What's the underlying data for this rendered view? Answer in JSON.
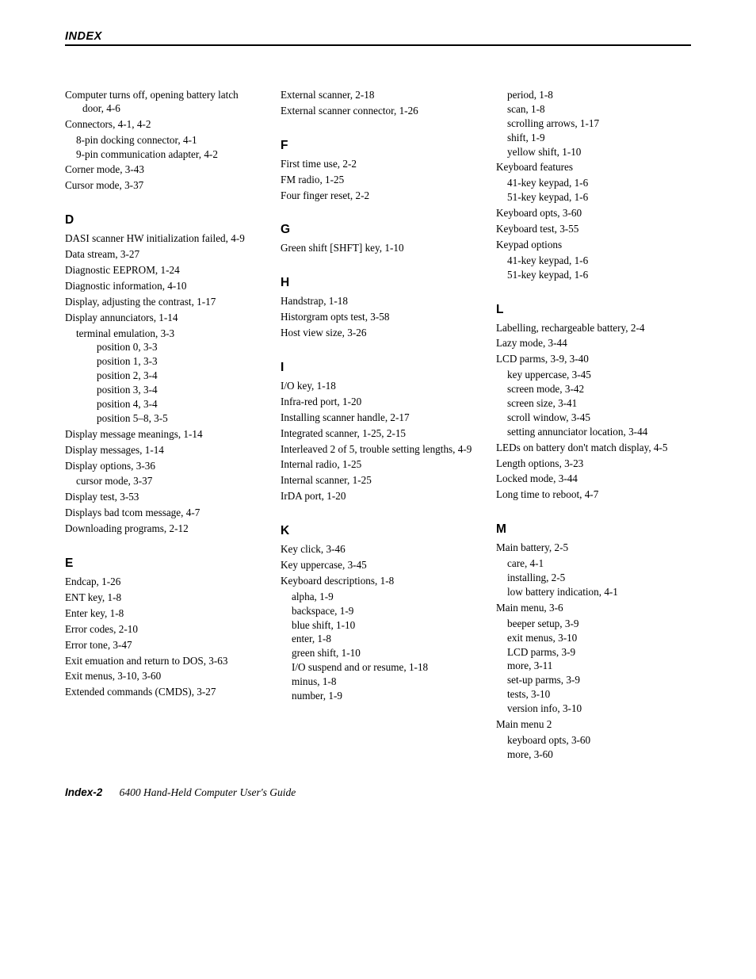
{
  "header": {
    "title": "INDEX"
  },
  "footer": {
    "page": "Index-2",
    "book": "6400 Hand-Held Computer User's Guide"
  },
  "col1": {
    "pre": [
      {
        "t": "entry",
        "text": "Computer turns off, opening battery latch door, 4-6"
      },
      {
        "t": "entry",
        "text": "Connectors, 4-1, 4-2"
      },
      {
        "t": "sub1",
        "text": "8-pin docking connector, 4-1"
      },
      {
        "t": "sub1",
        "text": "9-pin communication adapter, 4-2",
        "gap": true
      },
      {
        "t": "entry",
        "text": "Corner mode, 3-43"
      },
      {
        "t": "entry",
        "text": "Cursor mode, 3-37"
      }
    ],
    "D": [
      {
        "t": "entry",
        "text": "DASI scanner HW initialization failed, 4-9"
      },
      {
        "t": "entry",
        "text": "Data stream, 3-27"
      },
      {
        "t": "entry",
        "text": "Diagnostic EEPROM, 1-24"
      },
      {
        "t": "entry",
        "text": "Diagnostic information, 4-10"
      },
      {
        "t": "entry",
        "text": "Display, adjusting the contrast, 1-17"
      },
      {
        "t": "entry",
        "text": "Display annunciators, 1-14"
      },
      {
        "t": "sub1",
        "text": "terminal emulation, 3-3"
      },
      {
        "t": "sub2",
        "text": "position 0, 3-3"
      },
      {
        "t": "sub2",
        "text": "position 1, 3-3"
      },
      {
        "t": "sub2",
        "text": "position 2, 3-4"
      },
      {
        "t": "sub2",
        "text": "position 3, 3-4"
      },
      {
        "t": "sub2",
        "text": "position 4, 3-4"
      },
      {
        "t": "sub2",
        "text": "position 5–8, 3-5",
        "gap": true
      },
      {
        "t": "entry",
        "text": "Display message meanings, 1-14"
      },
      {
        "t": "entry",
        "text": "Display messages, 1-14"
      },
      {
        "t": "entry",
        "text": "Display options, 3-36"
      },
      {
        "t": "sub1",
        "text": "cursor mode, 3-37",
        "gap": true
      },
      {
        "t": "entry",
        "text": "Display test, 3-53"
      },
      {
        "t": "entry",
        "text": "Displays bad tcom message, 4-7"
      },
      {
        "t": "entry",
        "text": "Downloading programs, 2-12"
      }
    ],
    "E": [
      {
        "t": "entry",
        "text": "Endcap, 1-26"
      },
      {
        "t": "entry",
        "text": "ENT key, 1-8"
      },
      {
        "t": "entry",
        "text": "Enter key, 1-8"
      },
      {
        "t": "entry",
        "text": "Error codes, 2-10"
      },
      {
        "t": "entry",
        "text": "Error tone, 3-47"
      },
      {
        "t": "entry",
        "text": "Exit emuation and return to DOS, 3-63"
      },
      {
        "t": "entry",
        "text": "Exit menus, 3-10, 3-60"
      },
      {
        "t": "entry",
        "text": "Extended commands (CMDS), 3-27"
      }
    ]
  },
  "col2": {
    "pre": [
      {
        "t": "entry",
        "text": "External scanner, 2-18"
      },
      {
        "t": "entry",
        "text": "External scanner connector, 1-26"
      }
    ],
    "F": [
      {
        "t": "entry",
        "text": "First time use, 2-2"
      },
      {
        "t": "entry",
        "text": "FM radio, 1-25"
      },
      {
        "t": "entry",
        "text": "Four finger reset, 2-2"
      }
    ],
    "G": [
      {
        "t": "entry",
        "text": "Green shift [SHFT] key, 1-10"
      }
    ],
    "H": [
      {
        "t": "entry",
        "text": "Handstrap, 1-18"
      },
      {
        "t": "entry",
        "text": "Historgram opts test, 3-58"
      },
      {
        "t": "entry",
        "text": "Host view size, 3-26"
      }
    ],
    "I": [
      {
        "t": "entry",
        "text": "I/O key, 1-18"
      },
      {
        "t": "entry",
        "text": "Infra-red port, 1-20"
      },
      {
        "t": "entry",
        "text": "Installing scanner handle, 2-17"
      },
      {
        "t": "entry",
        "text": "Integrated scanner, 1-25, 2-15"
      },
      {
        "t": "entry",
        "text": "Interleaved 2 of 5, trouble setting lengths, 4-9"
      },
      {
        "t": "entry",
        "text": "Internal radio, 1-25"
      },
      {
        "t": "entry",
        "text": "Internal scanner, 1-25"
      },
      {
        "t": "entry",
        "text": "IrDA port, 1-20"
      }
    ],
    "K": [
      {
        "t": "entry",
        "text": "Key click, 3-46"
      },
      {
        "t": "entry",
        "text": "Key uppercase, 3-45"
      },
      {
        "t": "entry",
        "text": "Keyboard descriptions, 1-8"
      },
      {
        "t": "sub1",
        "text": "alpha, 1-9"
      },
      {
        "t": "sub1",
        "text": "backspace, 1-9"
      },
      {
        "t": "sub1",
        "text": "blue shift, 1-10"
      },
      {
        "t": "sub1",
        "text": "enter, 1-8"
      },
      {
        "t": "sub1",
        "text": "green shift, 1-10"
      },
      {
        "t": "sub1",
        "text": "I/O suspend and or resume, 1-18"
      },
      {
        "t": "sub1",
        "text": "minus, 1-8"
      },
      {
        "t": "sub1",
        "text": "number, 1-9"
      }
    ]
  },
  "col3": {
    "pre": [
      {
        "t": "sub1",
        "text": "period, 1-8"
      },
      {
        "t": "sub1",
        "text": "scan, 1-8"
      },
      {
        "t": "sub1",
        "text": "scrolling arrows, 1-17"
      },
      {
        "t": "sub1",
        "text": "shift, 1-9"
      },
      {
        "t": "sub1",
        "text": "yellow shift, 1-10",
        "gap": true
      },
      {
        "t": "entry",
        "text": "Keyboard features"
      },
      {
        "t": "sub1",
        "text": "41-key keypad, 1-6"
      },
      {
        "t": "sub1",
        "text": "51-key keypad, 1-6",
        "gap": true
      },
      {
        "t": "entry",
        "text": "Keyboard opts, 3-60"
      },
      {
        "t": "entry",
        "text": "Keyboard test, 3-55"
      },
      {
        "t": "entry",
        "text": "Keypad options"
      },
      {
        "t": "sub1",
        "text": "41-key keypad, 1-6"
      },
      {
        "t": "sub1",
        "text": "51-key keypad, 1-6"
      }
    ],
    "L": [
      {
        "t": "entry",
        "text": "Labelling, rechargeable battery, 2-4"
      },
      {
        "t": "entry",
        "text": "Lazy mode, 3-44"
      },
      {
        "t": "entry",
        "text": "LCD parms, 3-9, 3-40"
      },
      {
        "t": "sub1",
        "text": "key uppercase, 3-45"
      },
      {
        "t": "sub1",
        "text": "screen mode, 3-42"
      },
      {
        "t": "sub1",
        "text": "screen size, 3-41"
      },
      {
        "t": "sub1",
        "text": "scroll window, 3-45"
      },
      {
        "t": "sub1",
        "text": "setting annunciator location, 3-44",
        "gap": true
      },
      {
        "t": "entry",
        "text": "LEDs on battery don't match display, 4-5"
      },
      {
        "t": "entry",
        "text": "Length options, 3-23"
      },
      {
        "t": "entry",
        "text": "Locked mode, 3-44"
      },
      {
        "t": "entry",
        "text": "Long time to reboot, 4-7"
      }
    ],
    "M": [
      {
        "t": "entry",
        "text": "Main battery, 2-5"
      },
      {
        "t": "sub1",
        "text": "care, 4-1"
      },
      {
        "t": "sub1",
        "text": "installing, 2-5"
      },
      {
        "t": "sub1",
        "text": "low battery indication, 4-1",
        "gap": true
      },
      {
        "t": "entry",
        "text": "Main menu, 3-6"
      },
      {
        "t": "sub1",
        "text": "beeper setup, 3-9"
      },
      {
        "t": "sub1",
        "text": "exit menus, 3-10"
      },
      {
        "t": "sub1",
        "text": "LCD parms, 3-9"
      },
      {
        "t": "sub1",
        "text": "more, 3-11"
      },
      {
        "t": "sub1",
        "text": "set-up parms, 3-9"
      },
      {
        "t": "sub1",
        "text": "tests, 3-10"
      },
      {
        "t": "sub1",
        "text": "version info, 3-10",
        "gap": true
      },
      {
        "t": "entry",
        "text": "Main menu 2"
      },
      {
        "t": "sub1",
        "text": "keyboard opts, 3-60"
      },
      {
        "t": "sub1",
        "text": "more, 3-60"
      }
    ]
  }
}
